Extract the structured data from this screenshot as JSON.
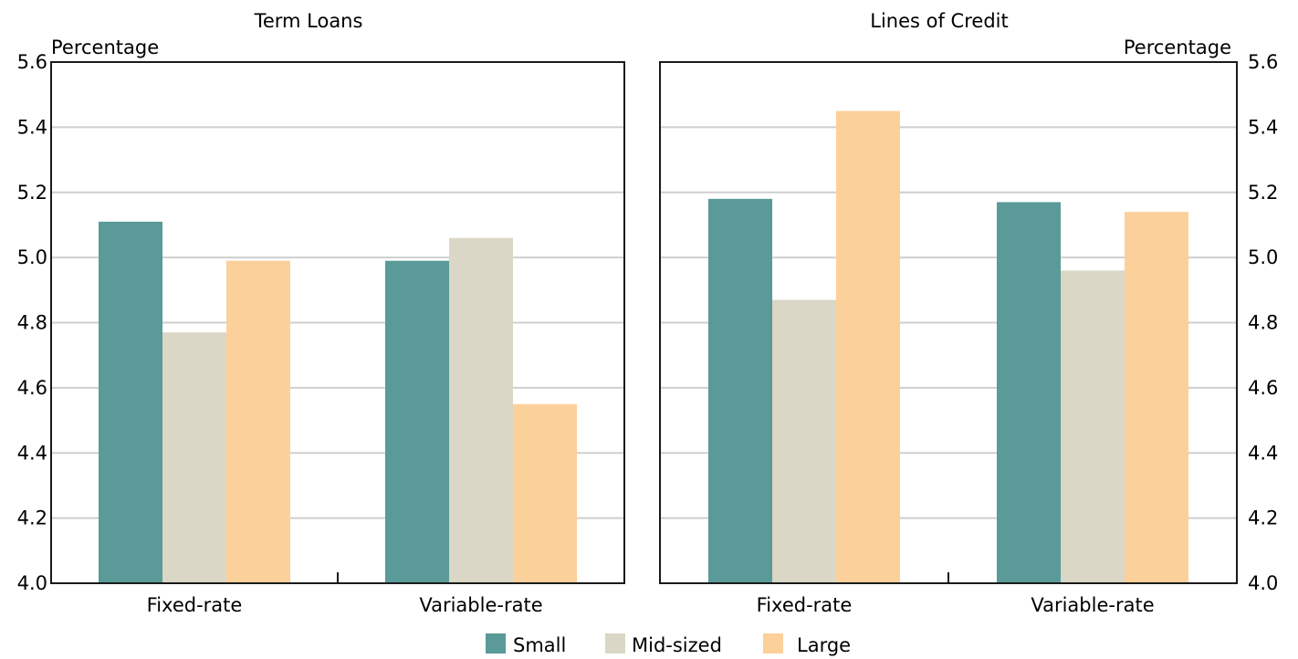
{
  "colors": {
    "small": "#5a9a98",
    "mid_sized": "#dad7c6",
    "large": "#fcd09b",
    "grid": "#cfcfcf",
    "frame": "#1a1a1a"
  },
  "legend": [
    "Small",
    "Mid-sized",
    "Large"
  ],
  "chart_data": [
    {
      "type": "bar",
      "title": "Term Loans",
      "ylabel": "Percentage",
      "ylim": [
        4.0,
        5.6
      ],
      "yticks": [
        "4.0",
        "4.2",
        "4.4",
        "4.6",
        "4.8",
        "5.0",
        "5.2",
        "5.4",
        "5.6"
      ],
      "y_axis_side": "left",
      "grid": true,
      "categories": [
        "Fixed-rate",
        "Variable-rate"
      ],
      "series": [
        {
          "name": "Small",
          "values": [
            5.11,
            4.99
          ]
        },
        {
          "name": "Mid-sized",
          "values": [
            4.77,
            5.06
          ]
        },
        {
          "name": "Large",
          "values": [
            4.99,
            4.55
          ]
        }
      ]
    },
    {
      "type": "bar",
      "title": "Lines of Credit",
      "ylabel": "Percentage",
      "ylim": [
        4.0,
        5.6
      ],
      "yticks": [
        "4.0",
        "4.2",
        "4.4",
        "4.6",
        "4.8",
        "5.0",
        "5.2",
        "5.4",
        "5.6"
      ],
      "y_axis_side": "right",
      "grid": true,
      "categories": [
        "Fixed-rate",
        "Variable-rate"
      ],
      "series": [
        {
          "name": "Small",
          "values": [
            5.18,
            5.17
          ]
        },
        {
          "name": "Mid-sized",
          "values": [
            4.87,
            4.96
          ]
        },
        {
          "name": "Large",
          "values": [
            5.45,
            5.14
          ]
        }
      ]
    }
  ]
}
